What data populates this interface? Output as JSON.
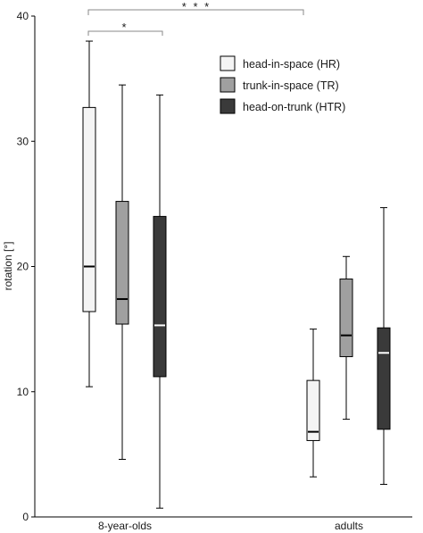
{
  "chart_data": {
    "type": "box",
    "ylabel": "rotation [°]",
    "ylim": [
      0,
      40
    ],
    "yticks": [
      0,
      10,
      20,
      30,
      40
    ],
    "categories": [
      "8-year-olds",
      "adults"
    ],
    "series": [
      {
        "name": "head-in-space (HR)",
        "fill": "#f4f4f4",
        "median_color": "#000000",
        "boxes": [
          {
            "whisker_low": 10.4,
            "q1": 16.4,
            "median": 20.0,
            "q3": 32.7,
            "whisker_high": 38.0
          },
          {
            "whisker_low": 3.2,
            "q1": 6.1,
            "median": 6.8,
            "q3": 10.9,
            "whisker_high": 15.0
          }
        ]
      },
      {
        "name": "trunk-in-space (TR)",
        "fill": "#a0a0a0",
        "median_color": "#000000",
        "boxes": [
          {
            "whisker_low": 4.6,
            "q1": 15.4,
            "median": 17.4,
            "q3": 25.2,
            "whisker_high": 34.5
          },
          {
            "whisker_low": 7.8,
            "q1": 12.8,
            "median": 14.5,
            "q3": 19.0,
            "whisker_high": 20.8
          }
        ]
      },
      {
        "name": "head-on-trunk (HTR)",
        "fill": "#3a3a3a",
        "median_color": "#ffffff",
        "boxes": [
          {
            "whisker_low": 0.7,
            "q1": 11.2,
            "median": 15.3,
            "q3": 24.0,
            "whisker_high": 33.7
          },
          {
            "whisker_low": 2.6,
            "q1": 7.0,
            "median": 13.1,
            "q3": 15.1,
            "whisker_high": 24.7
          }
        ]
      }
    ],
    "legend": {
      "position": "top-right",
      "entries": [
        "head-in-space (HR)",
        "trunk-in-space (TR)",
        "head-on-trunk (HTR)"
      ]
    },
    "significance": [
      {
        "label": "* * *"
      },
      {
        "label": "*"
      }
    ],
    "grid": false
  }
}
